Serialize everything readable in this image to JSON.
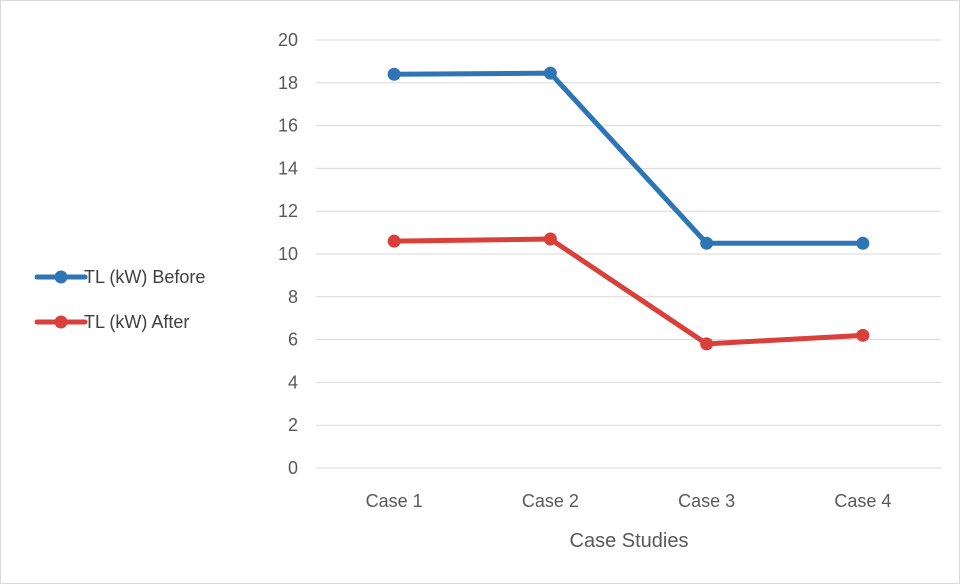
{
  "chart_data": {
    "type": "line",
    "title": "",
    "xlabel": "Case Studies",
    "ylabel": "",
    "categories": [
      "Case 1",
      "Case 2",
      "Case 3",
      "Case 4"
    ],
    "ylim": [
      0,
      20
    ],
    "yticks": [
      0,
      2,
      4,
      6,
      8,
      10,
      12,
      14,
      16,
      18,
      20
    ],
    "grid": true,
    "legend_position": "left",
    "series": [
      {
        "name": "TL (kW) Before",
        "color": "#2E75B6",
        "values": [
          18.4,
          18.45,
          10.5,
          10.5
        ]
      },
      {
        "name": "TL (kW) After",
        "color": "#D9403A",
        "values": [
          10.6,
          10.7,
          5.8,
          6.2
        ]
      }
    ]
  }
}
